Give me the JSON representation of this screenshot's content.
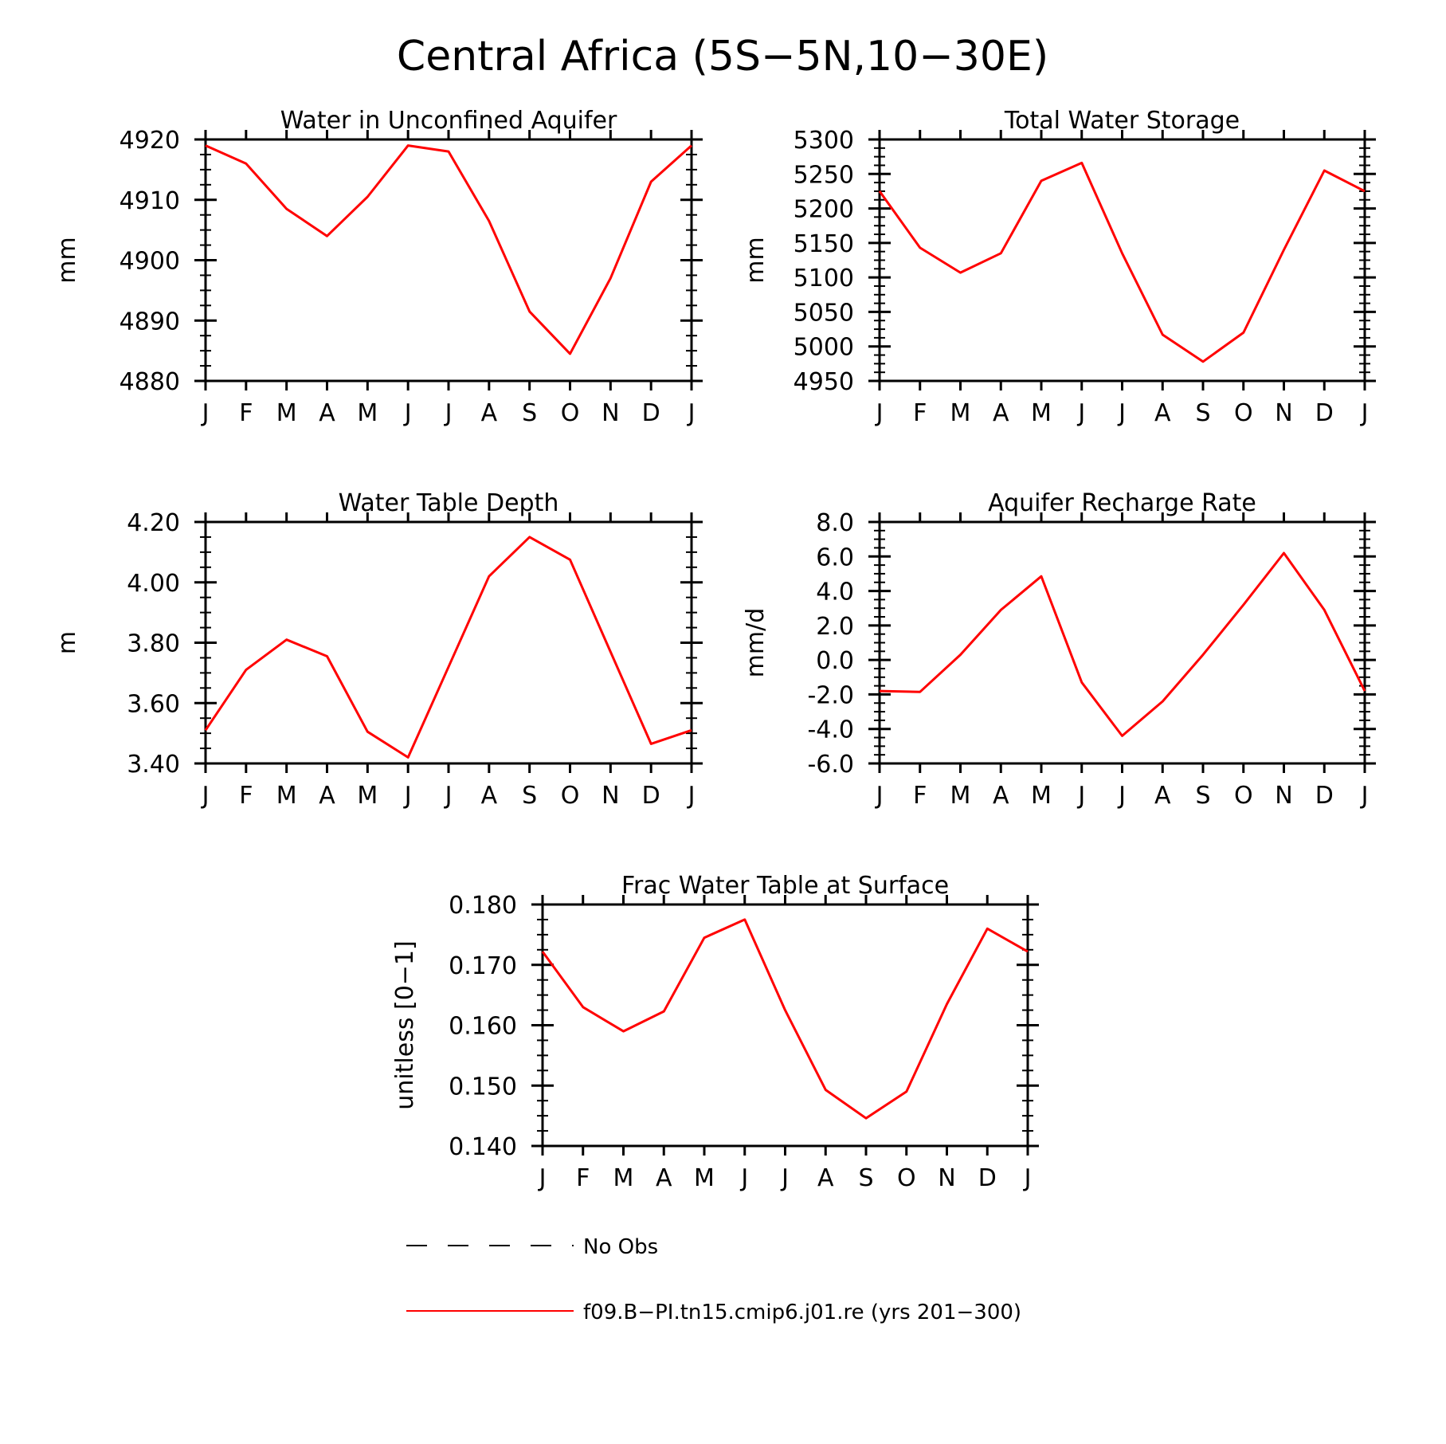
{
  "figure": {
    "title": "Central Africa (5S−5N,10−30E)"
  },
  "legend": {
    "items": [
      {
        "label": "No Obs",
        "style": "dashed",
        "color": "#000000"
      },
      {
        "label": "f09.B−PI.tn15.cmip6.j01.re (yrs 201−300)",
        "style": "solid",
        "color": "#ff0000"
      }
    ]
  },
  "chart_data": [
    {
      "type": "line",
      "title": "Water in Unconfined Aquifer",
      "ylabel": "mm",
      "xlabel": "",
      "categories": [
        "J",
        "F",
        "M",
        "A",
        "M",
        "J",
        "J",
        "A",
        "S",
        "O",
        "N",
        "D",
        "J"
      ],
      "ylim": [
        4880,
        4920
      ],
      "yticks": [
        "4880",
        "4890",
        "4900",
        "4910",
        "4920"
      ],
      "series": [
        {
          "name": "f09.B−PI.tn15.cmip6.j01.re (yrs 201−300)",
          "color": "#ff0000",
          "values": [
            4919,
            4916,
            4908.5,
            4904,
            4910.5,
            4919,
            4918,
            4906.5,
            4891.5,
            4884.5,
            4897,
            4913,
            4919
          ]
        }
      ]
    },
    {
      "type": "line",
      "title": "Total Water Storage",
      "ylabel": "mm",
      "xlabel": "",
      "categories": [
        "J",
        "F",
        "M",
        "A",
        "M",
        "J",
        "J",
        "A",
        "S",
        "O",
        "N",
        "D",
        "J"
      ],
      "ylim": [
        4950,
        5300
      ],
      "yticks": [
        "4950",
        "5000",
        "5050",
        "5100",
        "5150",
        "5200",
        "5250",
        "5300"
      ],
      "series": [
        {
          "name": "f09.B−PI.tn15.cmip6.j01.re (yrs 201−300)",
          "color": "#ff0000",
          "values": [
            5225,
            5143,
            5107,
            5135,
            5240,
            5266,
            5135,
            5017,
            4978,
            5020,
            5140,
            5255,
            5225
          ]
        }
      ]
    },
    {
      "type": "line",
      "title": "Water Table Depth",
      "ylabel": "m",
      "xlabel": "",
      "categories": [
        "J",
        "F",
        "M",
        "A",
        "M",
        "J",
        "J",
        "A",
        "S",
        "O",
        "N",
        "D",
        "J"
      ],
      "ylim": [
        3.4,
        4.2
      ],
      "yticks": [
        "3.40",
        "3.60",
        "3.80",
        "4.00",
        "4.20"
      ],
      "series": [
        {
          "name": "f09.B−PI.tn15.cmip6.j01.re (yrs 201−300)",
          "color": "#ff0000",
          "values": [
            3.51,
            3.71,
            3.81,
            3.755,
            3.505,
            3.42,
            3.72,
            4.02,
            4.15,
            4.075,
            3.77,
            3.465,
            3.51
          ]
        }
      ]
    },
    {
      "type": "line",
      "title": "Aquifer Recharge Rate",
      "ylabel": "mm/d",
      "xlabel": "",
      "categories": [
        "J",
        "F",
        "M",
        "A",
        "M",
        "J",
        "J",
        "A",
        "S",
        "O",
        "N",
        "D",
        "J"
      ],
      "ylim": [
        -6,
        8
      ],
      "yticks": [
        "-6.0",
        "-4.0",
        "-2.0",
        "0.0",
        "2.0",
        "4.0",
        "6.0",
        "8.0"
      ],
      "series": [
        {
          "name": "f09.B−PI.tn15.cmip6.j01.re (yrs 201−300)",
          "color": "#ff0000",
          "values": [
            -1.8,
            -1.85,
            0.3,
            2.9,
            4.85,
            -1.3,
            -4.4,
            -2.4,
            0.3,
            3.2,
            6.2,
            2.9,
            -1.8
          ]
        }
      ]
    },
    {
      "type": "line",
      "title": "Frac Water Table at Surface",
      "ylabel": "unitless [0−1]",
      "xlabel": "",
      "categories": [
        "J",
        "F",
        "M",
        "A",
        "M",
        "J",
        "J",
        "A",
        "S",
        "O",
        "N",
        "D",
        "J"
      ],
      "ylim": [
        0.14,
        0.18
      ],
      "yticks": [
        "0.140",
        "0.150",
        "0.160",
        "0.170",
        "0.180"
      ],
      "series": [
        {
          "name": "f09.B−PI.tn15.cmip6.j01.re (yrs 201−300)",
          "color": "#ff0000",
          "values": [
            0.1722,
            0.163,
            0.159,
            0.1623,
            0.1745,
            0.1775,
            0.1625,
            0.1493,
            0.1446,
            0.149,
            0.1635,
            0.176,
            0.1722
          ]
        }
      ]
    }
  ]
}
